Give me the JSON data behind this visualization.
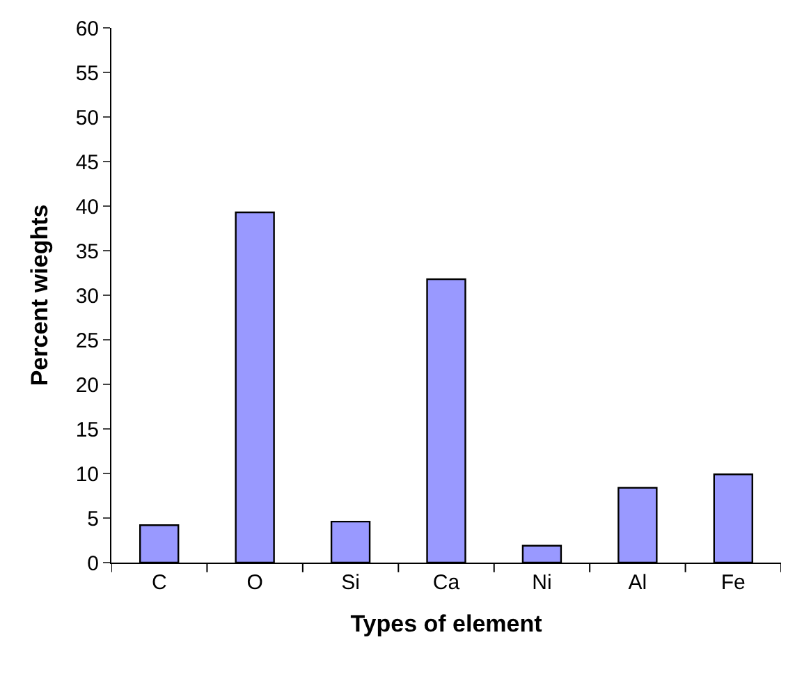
{
  "chart_data": {
    "type": "bar",
    "xlabel": "Types of element",
    "ylabel": "Percent wieghts",
    "categories": [
      "C",
      "O",
      "Si",
      "Ca",
      "Ni",
      "Al",
      "Fe"
    ],
    "values": [
      4.2,
      39.3,
      4.6,
      31.8,
      1.9,
      8.4,
      9.9
    ],
    "color": "#9999ff",
    "ylim": [
      0,
      60
    ],
    "yticks": [
      0,
      5,
      10,
      15,
      20,
      25,
      30,
      35,
      40,
      45,
      50,
      55,
      60
    ]
  }
}
